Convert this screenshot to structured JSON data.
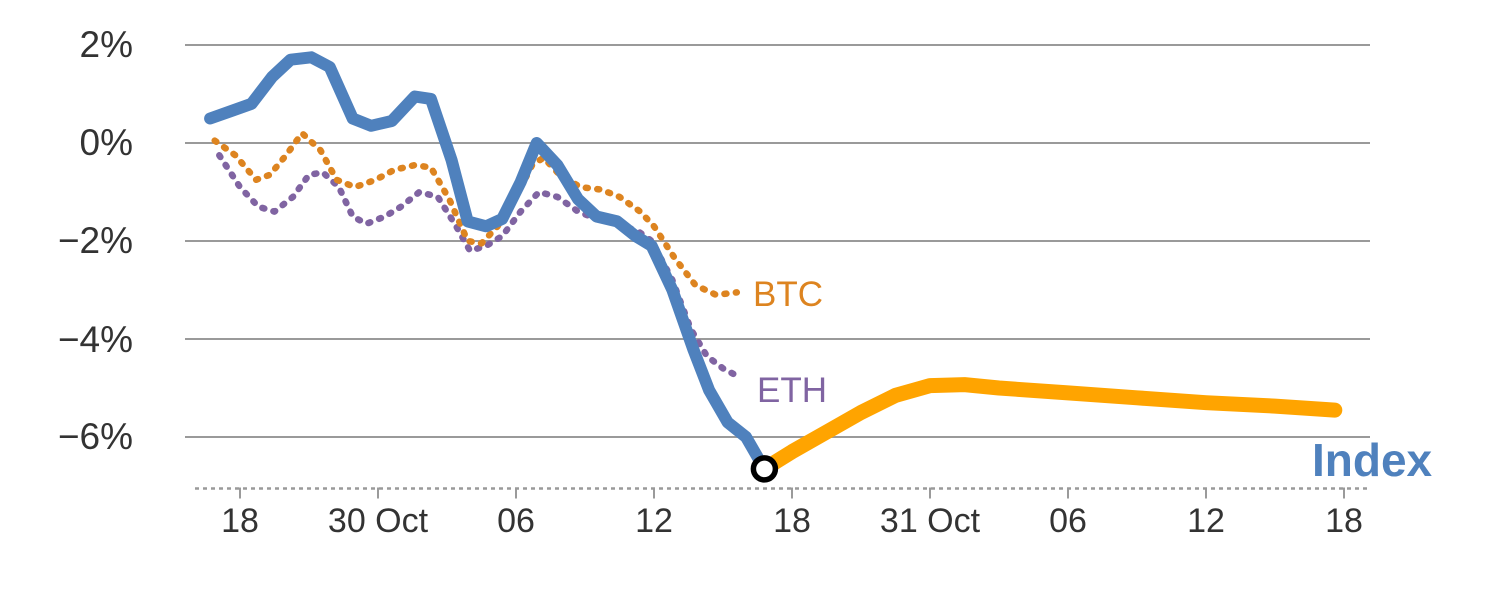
{
  "chart_data": {
    "type": "line",
    "title": "",
    "x_axis": {
      "unit": "time (6-hour ticks)",
      "tick_labels": [
        "18",
        "30 Oct",
        "06",
        "12",
        "18",
        "31 Oct",
        "06",
        "12",
        "18"
      ],
      "tick_hours": [
        0,
        6,
        12,
        18,
        24,
        30,
        36,
        42,
        48
      ]
    },
    "y_axis": {
      "tick_labels": [
        "2%",
        "0%",
        "−2%",
        "−4%",
        "−6%"
      ],
      "tick_values": [
        2,
        0,
        -2,
        -4,
        -6
      ],
      "ylim": [
        -7.05,
        2.5
      ]
    },
    "series": [
      {
        "name": "ETH",
        "color": "#8064a2",
        "style": "dotted",
        "width": 6.5,
        "points": [
          [
            -0.9,
            -0.25
          ],
          [
            0.0,
            -0.9
          ],
          [
            0.8,
            -1.3
          ],
          [
            1.5,
            -1.4
          ],
          [
            2.3,
            -1.1
          ],
          [
            3.0,
            -0.65
          ],
          [
            3.6,
            -0.6
          ],
          [
            4.3,
            -0.9
          ],
          [
            4.9,
            -1.5
          ],
          [
            5.5,
            -1.65
          ],
          [
            6.3,
            -1.5
          ],
          [
            7.0,
            -1.3
          ],
          [
            7.8,
            -1.0
          ],
          [
            8.6,
            -1.1
          ],
          [
            9.4,
            -1.7
          ],
          [
            10.0,
            -2.2
          ],
          [
            10.7,
            -2.1
          ],
          [
            11.4,
            -1.9
          ],
          [
            12.2,
            -1.4
          ],
          [
            13.0,
            -1.0
          ],
          [
            13.8,
            -1.1
          ],
          [
            14.7,
            -1.4
          ],
          [
            15.5,
            -1.55
          ],
          [
            16.4,
            -1.65
          ],
          [
            17.3,
            -1.8
          ],
          [
            17.9,
            -2.0
          ],
          [
            18.8,
            -2.8
          ],
          [
            19.6,
            -3.8
          ],
          [
            20.3,
            -4.35
          ],
          [
            21.0,
            -4.6
          ],
          [
            21.8,
            -4.8
          ]
        ]
      },
      {
        "name": "BTC",
        "color": "#dd8420",
        "style": "dotted",
        "width": 6.5,
        "points": [
          [
            -1.1,
            0.05
          ],
          [
            -0.2,
            -0.25
          ],
          [
            0.7,
            -0.75
          ],
          [
            1.3,
            -0.65
          ],
          [
            2.0,
            -0.25
          ],
          [
            2.7,
            0.2
          ],
          [
            3.5,
            -0.15
          ],
          [
            4.2,
            -0.75
          ],
          [
            5.0,
            -0.9
          ],
          [
            5.9,
            -0.75
          ],
          [
            6.7,
            -0.55
          ],
          [
            7.6,
            -0.45
          ],
          [
            8.3,
            -0.5
          ],
          [
            9.1,
            -1.15
          ],
          [
            9.9,
            -2.0
          ],
          [
            10.5,
            -2.05
          ],
          [
            11.2,
            -1.7
          ],
          [
            12.0,
            -1.1
          ],
          [
            12.7,
            -0.45
          ],
          [
            13.2,
            -0.3
          ],
          [
            13.9,
            -0.65
          ],
          [
            14.8,
            -0.9
          ],
          [
            15.7,
            -0.95
          ],
          [
            16.5,
            -1.1
          ],
          [
            17.4,
            -1.4
          ],
          [
            18.0,
            -1.7
          ],
          [
            18.9,
            -2.35
          ],
          [
            19.8,
            -2.9
          ],
          [
            20.7,
            -3.1
          ],
          [
            21.6,
            -3.05
          ]
        ]
      },
      {
        "name": "Index",
        "color": "#4f81bd",
        "style": "solid",
        "width": 12,
        "points": [
          [
            -1.3,
            0.5
          ],
          [
            -0.4,
            0.65
          ],
          [
            0.5,
            0.8
          ],
          [
            1.4,
            1.35
          ],
          [
            2.2,
            1.7
          ],
          [
            3.1,
            1.75
          ],
          [
            3.9,
            1.55
          ],
          [
            4.9,
            0.5
          ],
          [
            5.7,
            0.35
          ],
          [
            6.6,
            0.45
          ],
          [
            7.6,
            0.95
          ],
          [
            8.3,
            0.9
          ],
          [
            9.2,
            -0.35
          ],
          [
            9.9,
            -1.6
          ],
          [
            10.7,
            -1.7
          ],
          [
            11.4,
            -1.55
          ],
          [
            12.2,
            -0.8
          ],
          [
            12.9,
            0.0
          ],
          [
            13.8,
            -0.45
          ],
          [
            14.7,
            -1.15
          ],
          [
            15.5,
            -1.5
          ],
          [
            16.4,
            -1.6
          ],
          [
            17.2,
            -1.9
          ],
          [
            17.9,
            -2.1
          ],
          [
            18.8,
            -3.0
          ],
          [
            19.7,
            -4.2
          ],
          [
            20.4,
            -5.05
          ],
          [
            21.2,
            -5.7
          ],
          [
            22.0,
            -6.0
          ],
          [
            22.8,
            -6.65
          ]
        ]
      },
      {
        "name": "Index",
        "color": "#ffa400",
        "style": "solid",
        "width": 15,
        "points": [
          [
            22.8,
            -6.65
          ],
          [
            24.0,
            -6.3
          ],
          [
            25.5,
            -5.9
          ],
          [
            27.0,
            -5.5
          ],
          [
            28.5,
            -5.15
          ],
          [
            30.0,
            -4.95
          ],
          [
            31.5,
            -4.93
          ],
          [
            33.0,
            -5.0
          ],
          [
            36.0,
            -5.1
          ],
          [
            39.0,
            -5.2
          ],
          [
            42.0,
            -5.3
          ],
          [
            45.0,
            -5.37
          ],
          [
            47.6,
            -5.45
          ]
        ]
      }
    ],
    "marker": {
      "h": 22.8,
      "value": -6.65,
      "radius": 11,
      "fill": "#ffffff",
      "stroke": "#000000",
      "stroke_width": 5.5
    },
    "colors": {
      "grid": "#9a9a9a",
      "axis_text": "#333333",
      "background": "#ffffff",
      "index_blue": "#4f81bd",
      "index_orange": "#ffa400",
      "btc_orange": "#dd8420",
      "eth_purple": "#8064a2"
    },
    "legend_position": "inline-end-of-line"
  }
}
